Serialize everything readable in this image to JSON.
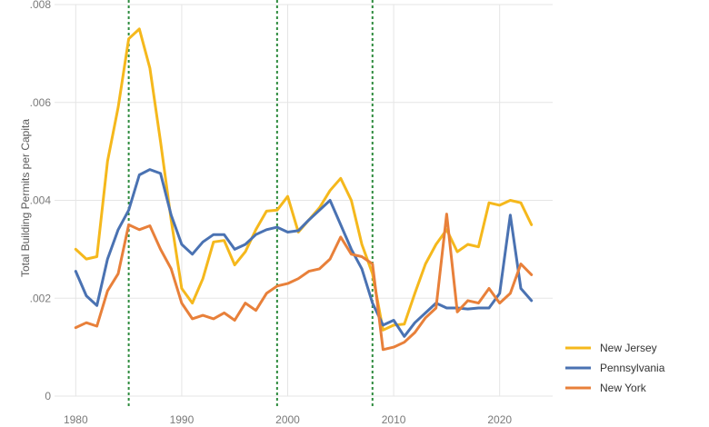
{
  "chart_data": {
    "type": "line",
    "ylabel": "Total Building Permits per Capita",
    "xlabel": "",
    "xlim": [
      1978,
      2025
    ],
    "ylim": [
      0,
      0.008
    ],
    "x_ticks": [
      {
        "value": 1980,
        "label": "1980"
      },
      {
        "value": 1990,
        "label": "1990"
      },
      {
        "value": 2000,
        "label": "2000"
      },
      {
        "value": 2010,
        "label": "2010"
      },
      {
        "value": 2020,
        "label": "2020"
      }
    ],
    "y_ticks": [
      {
        "value": 0,
        "label": "0"
      },
      {
        "value": 0.002,
        "label": ".002"
      },
      {
        "value": 0.004,
        "label": ".004"
      },
      {
        "value": 0.006,
        "label": ".006"
      },
      {
        "value": 0.008,
        "label": ".008"
      }
    ],
    "grid": true,
    "legend_position": "bottom-right",
    "reference_lines": {
      "x": [
        1985,
        1999,
        2008
      ],
      "color": "#2e8b3e",
      "style": "dotted"
    },
    "x": [
      1980,
      1981,
      1982,
      1983,
      1984,
      1985,
      1986,
      1987,
      1988,
      1989,
      1990,
      1991,
      1992,
      1993,
      1994,
      1995,
      1996,
      1997,
      1998,
      1999,
      2000,
      2001,
      2002,
      2003,
      2004,
      2005,
      2006,
      2007,
      2008,
      2009,
      2010,
      2011,
      2012,
      2013,
      2014,
      2015,
      2016,
      2017,
      2018,
      2019,
      2020,
      2021,
      2022,
      2023
    ],
    "series": [
      {
        "name": "New Jersey",
        "color": "#f5b81c",
        "values": [
          0.003,
          0.0028,
          0.00285,
          0.0048,
          0.0059,
          0.0073,
          0.0075,
          0.0067,
          0.0052,
          0.0036,
          0.0022,
          0.0019,
          0.0024,
          0.00315,
          0.00318,
          0.00268,
          0.00295,
          0.0034,
          0.00378,
          0.0038,
          0.00408,
          0.00335,
          0.0036,
          0.00385,
          0.0042,
          0.00445,
          0.004,
          0.0031,
          0.0025,
          0.00135,
          0.00145,
          0.00147,
          0.0021,
          0.0027,
          0.0031,
          0.0034,
          0.00295,
          0.0031,
          0.00305,
          0.00395,
          0.0039,
          0.004,
          0.00395,
          0.0035
        ]
      },
      {
        "name": "Pennsylvania",
        "color": "#4a72b2",
        "values": [
          0.00255,
          0.00205,
          0.00185,
          0.0028,
          0.0034,
          0.0038,
          0.00452,
          0.00463,
          0.00455,
          0.0037,
          0.0031,
          0.0029,
          0.00315,
          0.0033,
          0.0033,
          0.003,
          0.0031,
          0.0033,
          0.0034,
          0.00345,
          0.00335,
          0.00338,
          0.0036,
          0.0038,
          0.004,
          0.0035,
          0.003,
          0.0026,
          0.0019,
          0.00145,
          0.00155,
          0.00122,
          0.0015,
          0.0017,
          0.0019,
          0.0018,
          0.0018,
          0.00178,
          0.0018,
          0.0018,
          0.0021,
          0.0037,
          0.0022,
          0.00195
        ]
      },
      {
        "name": "New York",
        "color": "#e8803a",
        "values": [
          0.0014,
          0.0015,
          0.00143,
          0.00215,
          0.0025,
          0.0035,
          0.0034,
          0.00348,
          0.003,
          0.0026,
          0.0019,
          0.00158,
          0.00165,
          0.00158,
          0.0017,
          0.00155,
          0.0019,
          0.00175,
          0.0021,
          0.00225,
          0.0023,
          0.0024,
          0.00255,
          0.0026,
          0.0028,
          0.00325,
          0.0029,
          0.00285,
          0.0027,
          0.00095,
          0.001,
          0.0011,
          0.0013,
          0.0016,
          0.0018,
          0.00372,
          0.00172,
          0.00195,
          0.0019,
          0.0022,
          0.0019,
          0.0021,
          0.0027,
          0.00248
        ]
      }
    ]
  }
}
